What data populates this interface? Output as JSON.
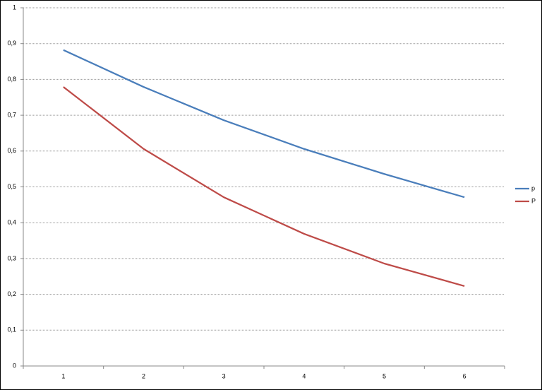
{
  "chart_data": {
    "type": "line",
    "categories": [
      "1",
      "2",
      "3",
      "4",
      "5",
      "6"
    ],
    "series": [
      {
        "name": "p",
        "color": "#4a7ebb",
        "values": [
          0.882,
          0.779,
          0.686,
          0.606,
          0.536,
          0.471
        ]
      },
      {
        "name": "P",
        "color": "#be4b48",
        "values": [
          0.779,
          0.606,
          0.471,
          0.369,
          0.286,
          0.223
        ]
      }
    ],
    "ylim": [
      0,
      1
    ],
    "yticks": [
      0,
      {
        "value": 0.1,
        "label": "0,1"
      },
      {
        "value": 0.2,
        "label": "0,2"
      },
      {
        "value": 0.3,
        "label": "0,3"
      },
      {
        "value": 0.4,
        "label": "0,4"
      },
      {
        "value": 0.5,
        "label": "0,5"
      },
      {
        "value": 0.6,
        "label": "0,6"
      },
      {
        "value": 0.7,
        "label": "0,7"
      },
      {
        "value": 0.8,
        "label": "0,8"
      },
      {
        "value": 0.9,
        "label": "0,9"
      },
      1
    ],
    "grid": true,
    "legend": "right"
  }
}
